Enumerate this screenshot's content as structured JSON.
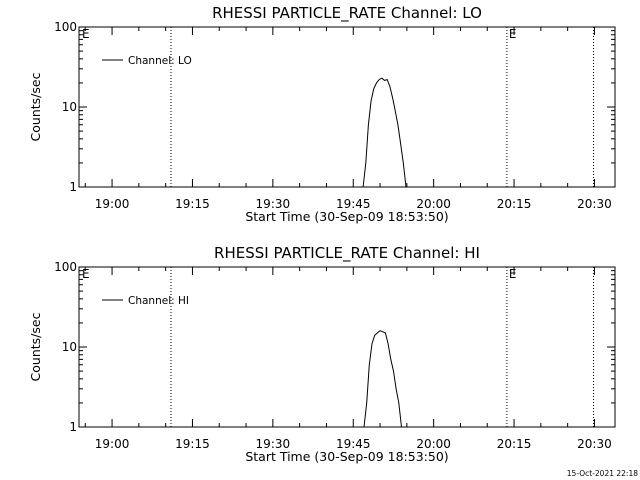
{
  "chart_data": [
    {
      "type": "line",
      "title": "RHESSI PARTICLE_RATE Channel: LO",
      "xlabel": "Start Time (30-Sep-09 18:53:50)",
      "ylabel": "Counts/sec",
      "xlim": [
        "18:53:50",
        "20:33:50"
      ],
      "ylim": [
        1,
        100
      ],
      "yscale": "log",
      "x_tick_labels": [
        "19:00",
        "19:15",
        "19:30",
        "19:45",
        "20:00",
        "20:15",
        "20:30"
      ],
      "y_tick_labels": [
        "1",
        "10",
        "100"
      ],
      "legend": {
        "label": "Channel: LO",
        "position": "top-left"
      },
      "annotations": [
        {
          "time": "19:11:00",
          "label": ""
        },
        {
          "time": "20:13:40",
          "label": "E"
        },
        {
          "time": "20:29:50",
          "label": ""
        }
      ],
      "corner_label": "E",
      "series": [
        {
          "name": "Channel: LO",
          "x": [
            "19:46:50",
            "19:47:20",
            "19:47:50",
            "19:48:20",
            "19:48:50",
            "19:49:20",
            "19:49:50",
            "19:50:20",
            "19:50:50",
            "19:51:20",
            "19:51:50",
            "19:52:20",
            "19:52:50",
            "19:53:20",
            "19:53:50",
            "19:54:20",
            "19:54:50"
          ],
          "y": [
            1.0,
            2.0,
            6.0,
            12.0,
            17.0,
            20.0,
            22.0,
            23.0,
            21.5,
            22.0,
            18.0,
            13.0,
            9.0,
            6.0,
            3.5,
            2.0,
            1.0
          ]
        }
      ]
    },
    {
      "type": "line",
      "title": "RHESSI PARTICLE_RATE Channel: HI",
      "xlabel": "Start Time (30-Sep-09 18:53:50)",
      "ylabel": "Counts/sec",
      "xlim": [
        "18:53:50",
        "20:33:50"
      ],
      "ylim": [
        1,
        100
      ],
      "yscale": "log",
      "x_tick_labels": [
        "19:00",
        "19:15",
        "19:30",
        "19:45",
        "20:00",
        "20:15",
        "20:30"
      ],
      "y_tick_labels": [
        "1",
        "10",
        "100"
      ],
      "legend": {
        "label": "Channel: HI",
        "position": "top-left"
      },
      "annotations": [
        {
          "time": "19:11:00",
          "label": ""
        },
        {
          "time": "20:13:40",
          "label": "E"
        },
        {
          "time": "20:29:50",
          "label": ""
        }
      ],
      "corner_label": "E",
      "series": [
        {
          "name": "Channel: HI",
          "x": [
            "19:47:00",
            "19:47:30",
            "19:48:00",
            "19:48:30",
            "19:49:00",
            "19:49:30",
            "19:50:00",
            "19:50:30",
            "19:51:00",
            "19:51:30",
            "19:52:00",
            "19:52:30",
            "19:53:00",
            "19:53:30",
            "19:54:00"
          ],
          "y": [
            1.0,
            2.0,
            6.0,
            11.0,
            14.0,
            15.0,
            16.0,
            15.5,
            15.0,
            11.0,
            7.0,
            5.0,
            3.0,
            2.0,
            1.0
          ]
        }
      ]
    }
  ],
  "footer": {
    "timestamp": "15-Oct-2021 22:18"
  }
}
